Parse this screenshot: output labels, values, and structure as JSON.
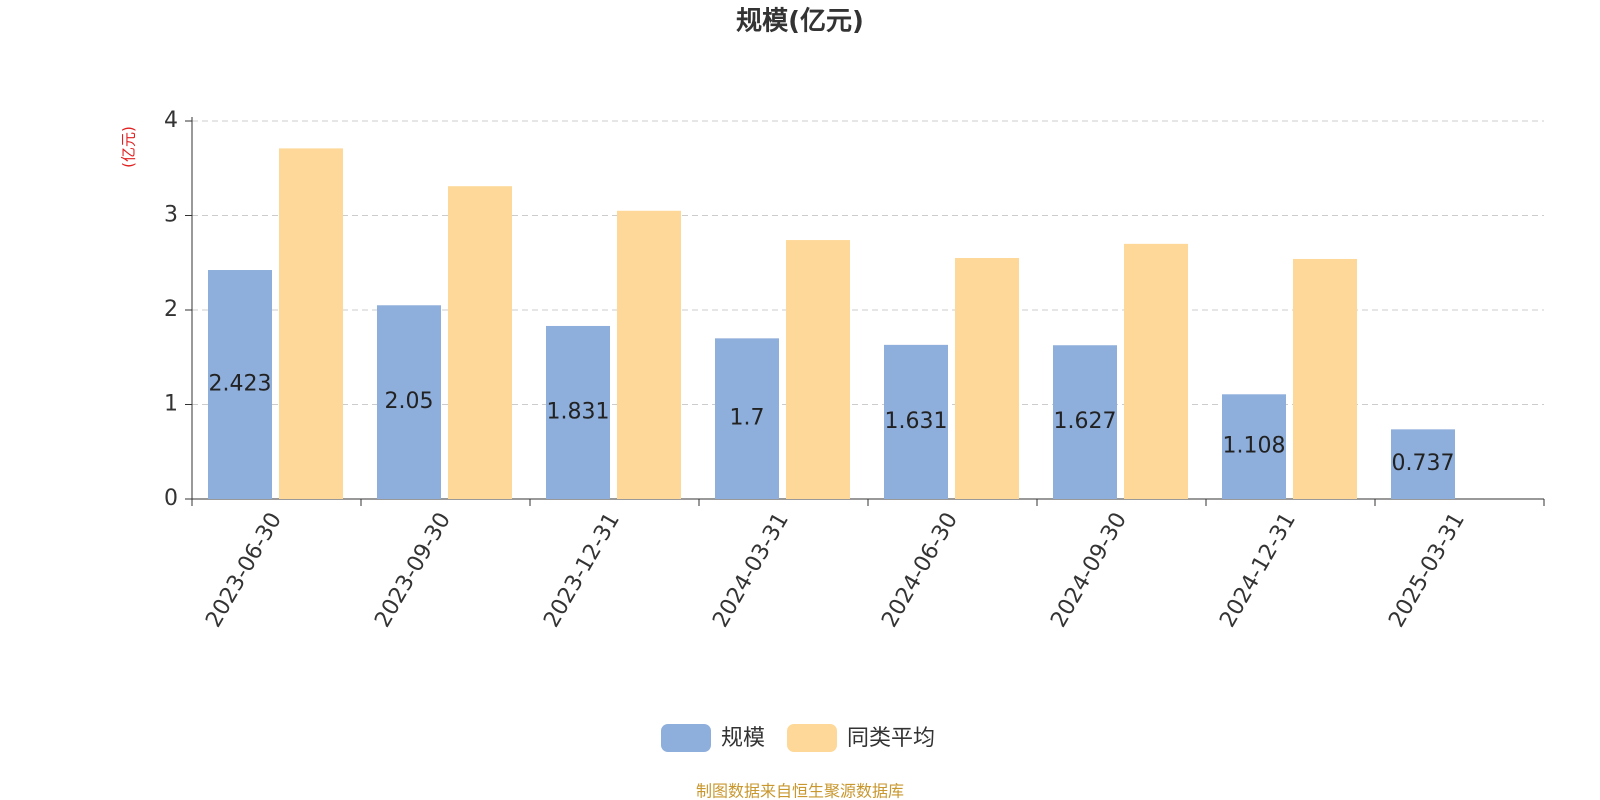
{
  "chart_data": {
    "type": "bar",
    "title": "规模(亿元)",
    "y_label": "(亿元)",
    "categories": [
      "2023-06-30",
      "2023-09-30",
      "2023-12-31",
      "2024-03-31",
      "2024-06-30",
      "2024-09-30",
      "2024-12-31",
      "2025-03-31"
    ],
    "series": [
      {
        "name": "规模",
        "color": "#8eaedb",
        "values": [
          2.423,
          2.05,
          1.831,
          1.7,
          1.631,
          1.627,
          1.108,
          0.737
        ]
      },
      {
        "name": "同类平均",
        "color": "#fed898",
        "values": [
          3.71,
          3.31,
          3.05,
          2.74,
          2.55,
          2.7,
          2.54,
          null
        ]
      }
    ],
    "ylim": [
      0,
      4
    ],
    "yticks": [
      0,
      1,
      2,
      3,
      4
    ],
    "grid": true,
    "source": "制图数据来自恒生聚源数据库"
  }
}
